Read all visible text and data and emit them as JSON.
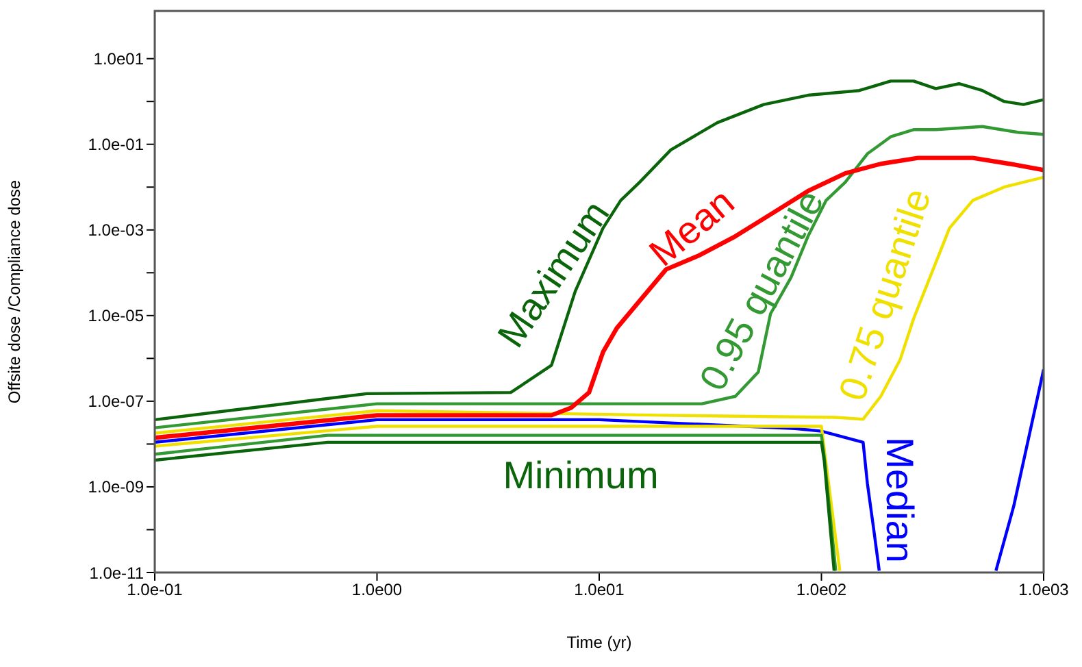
{
  "chart_data": {
    "type": "line",
    "xlabel": "Time (yr)",
    "ylabel": "Offsite dose /Compliance dose",
    "log": "xy",
    "xlim": [
      0.1,
      1000
    ],
    "ylim": [
      1e-11,
      130
    ],
    "xticks": [
      {
        "value": 0.1,
        "label": "1.0e-01"
      },
      {
        "value": 1,
        "label": "1.0e00"
      },
      {
        "value": 10,
        "label": "1.0e01"
      },
      {
        "value": 100,
        "label": "1.0e02"
      },
      {
        "value": 1000,
        "label": "1.0e03"
      }
    ],
    "yticks": [
      {
        "value": 1e-11,
        "label": "1.0e-11"
      },
      {
        "value": 1e-10,
        "label": null
      },
      {
        "value": 1e-09,
        "label": "1.0e-09"
      },
      {
        "value": 1e-08,
        "label": null
      },
      {
        "value": 1e-07,
        "label": "1.0e-07"
      },
      {
        "value": 1e-06,
        "label": null
      },
      {
        "value": 1e-05,
        "label": "1.0e-05"
      },
      {
        "value": 0.0001,
        "label": null
      },
      {
        "value": 0.001,
        "label": "1.0e-03"
      },
      {
        "value": 0.01,
        "label": null
      },
      {
        "value": 0.1,
        "label": "1.0e-01"
      },
      {
        "value": 1,
        "label": null
      },
      {
        "value": 10,
        "label": "1.0e01"
      }
    ],
    "series": [
      {
        "name": "Maximum",
        "color": "#0a640a",
        "x": [
          0.1,
          0.9,
          4.0,
          6.1,
          7.8,
          10.4,
          12.5,
          15.2,
          21,
          34,
          55,
          87,
          148,
          205,
          260,
          327,
          416,
          530,
          664,
          811,
          1000
        ],
        "values": [
          3.7e-08,
          1.5e-07,
          1.6e-07,
          6.9e-07,
          3.7e-05,
          0.0011,
          0.0049,
          0.013,
          0.074,
          0.32,
          0.85,
          1.4,
          1.8,
          3.0,
          3.0,
          2.0,
          2.6,
          1.8,
          1.0,
          0.85,
          1.1
        ]
      },
      {
        "name": "0.95 quantile",
        "color": "#339933",
        "x": [
          0.1,
          1,
          29,
          41,
          52,
          59,
          73,
          87,
          105,
          128,
          161,
          205,
          260,
          327,
          530,
          766,
          1000
        ],
        "values": [
          2.4e-08,
          8.7e-08,
          8.7e-08,
          1.3e-07,
          4.8e-07,
          1.1e-05,
          7.8e-05,
          0.00071,
          0.0049,
          0.013,
          0.06,
          0.15,
          0.22,
          0.22,
          0.26,
          0.19,
          0.17
        ]
      },
      {
        "name": "0.75 quantile",
        "color": "#f0e000",
        "x": [
          0.1,
          1,
          19,
          116,
          154,
          185,
          226,
          260,
          313,
          377,
          480,
          664,
          1000
        ],
        "values": [
          1.8e-08,
          6e-08,
          4.7e-08,
          4.2e-08,
          3.8e-08,
          1.3e-07,
          9.3e-07,
          8.5e-06,
          9.7e-05,
          0.0011,
          0.0049,
          0.01,
          0.017
        ]
      },
      {
        "name": "Mean",
        "color": "#ff0000",
        "x": [
          0.1,
          1,
          6.1,
          7.5,
          9.0,
          10.4,
          12.0,
          15.2,
          20,
          28,
          41,
          59,
          87,
          128,
          185,
          272,
          480,
          703,
          1000
        ],
        "values": [
          1.4e-08,
          4.7e-08,
          4.7e-08,
          7.1e-08,
          1.6e-07,
          1.4e-06,
          5.1e-06,
          2.2e-05,
          0.00012,
          0.00025,
          0.00071,
          0.0023,
          0.0081,
          0.021,
          0.035,
          0.048,
          0.048,
          0.035,
          0.025
        ]
      },
      {
        "name": "Median",
        "color": "#0000ff",
        "x": [
          0.1,
          1,
          10,
          76,
          100,
          154,
          161,
          172,
          182,
          300,
          610,
          733,
          883,
          1000
        ],
        "values": [
          1.1e-08,
          3.7e-08,
          3.7e-08,
          2.3e-08,
          2e-08,
          1.1e-08,
          1.2e-09,
          1e-10,
          1.1e-11,
          null,
          1.1e-11,
          3.5e-10,
          2.9e-08,
          5.5e-07
        ]
      },
      {
        "color": "#f0e000",
        "x": [
          0.1,
          1,
          100,
          104,
          121
        ],
        "values": [
          8.9e-09,
          2.6e-08,
          2.6e-08,
          5e-09,
          1.1e-11
        ]
      },
      {
        "color": "#339933",
        "x": [
          0.1,
          0.6,
          100,
          103,
          116
        ],
        "values": [
          5.8e-09,
          1.6e-08,
          1.6e-08,
          5e-09,
          1.1e-11
        ]
      },
      {
        "name": "Minimum",
        "color": "#0a640a",
        "x": [
          0.1,
          0.6,
          100,
          103,
          114
        ],
        "values": [
          4.2e-09,
          1.1e-08,
          1.1e-08,
          4e-09,
          1.1e-11
        ]
      }
    ]
  }
}
